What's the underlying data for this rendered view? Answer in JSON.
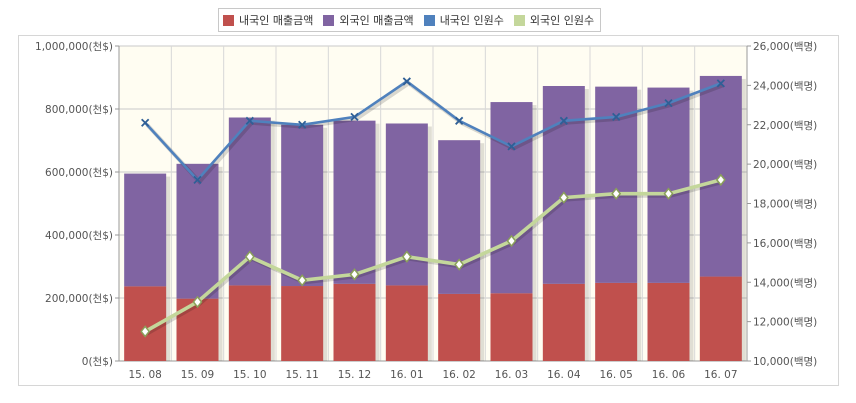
{
  "chart_data": {
    "type": "bar",
    "stacked": true,
    "categories": [
      "15. 08",
      "15. 09",
      "15. 10",
      "15. 11",
      "15. 12",
      "16. 01",
      "16. 02",
      "16. 03",
      "16. 04",
      "16. 05",
      "16. 06",
      "16. 07"
    ],
    "series": [
      {
        "name": "내국인 매출금액",
        "type": "bar",
        "axis": "left",
        "color": "#c0504d",
        "values": [
          237000,
          198000,
          240000,
          238000,
          245000,
          240000,
          213000,
          215000,
          245000,
          248000,
          248000,
          268000
        ]
      },
      {
        "name": "외국인 매출금액",
        "type": "bar",
        "axis": "left",
        "color": "#8064a2",
        "values": [
          358000,
          428000,
          533000,
          512000,
          518000,
          514000,
          488000,
          607000,
          628000,
          623000,
          620000,
          637000
        ]
      },
      {
        "name": "내국인 인원수",
        "type": "line",
        "axis": "right",
        "color": "#4f81bd",
        "values": [
          22100,
          19200,
          22200,
          22000,
          22400,
          24200,
          22200,
          20900,
          22200,
          22400,
          23100,
          24100
        ]
      },
      {
        "name": "외국인 인원수",
        "type": "line",
        "axis": "right",
        "color": "#c4d79b",
        "values": [
          11500,
          13000,
          15300,
          14100,
          14400,
          15300,
          14900,
          16100,
          18300,
          18500,
          18500,
          19200
        ]
      }
    ],
    "y_left": {
      "min": 0,
      "max": 1000000,
      "step": 200000,
      "unit_suffix": "(천$)",
      "tick_labels": [
        "0(천$)",
        "200,000(천$)",
        "400,000(천$)",
        "600,000(천$)",
        "800,000(천$)",
        "1,000,000(천$)"
      ]
    },
    "y_right": {
      "min": 10000,
      "max": 26000,
      "step": 2000,
      "unit_suffix": "(백명)",
      "tick_labels": [
        "10,000(백명)",
        "12,000(백명)",
        "14,000(백명)",
        "16,000(백명)",
        "18,000(백명)",
        "20,000(백명)",
        "22,000(백명)",
        "24,000(백명)",
        "26,000(백명)"
      ]
    },
    "grid": true,
    "legend_position": "top-center",
    "plot_background": "#fffdf2"
  }
}
